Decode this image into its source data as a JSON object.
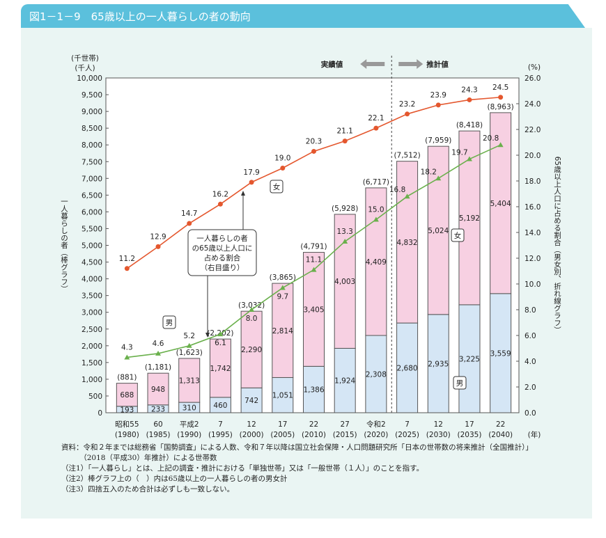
{
  "title": "図1－1－9　65歳以上の一人暮らしの者の動向",
  "chart_data": {
    "type": "bar+line",
    "categories": [
      "昭和55",
      "60",
      "平成2",
      "7",
      "12",
      "17",
      "22",
      "27",
      "令和2",
      "7",
      "12",
      "17",
      "22"
    ],
    "category_years": [
      "(1980)",
      "(1985)",
      "(1990)",
      "(1995)",
      "(2000)",
      "(2005)",
      "(2010)",
      "(2015)",
      "(2020)",
      "(2025)",
      "(2030)",
      "(2035)",
      "(2040)"
    ],
    "x_unit": "(年)",
    "left_axis": {
      "units": [
        "(千世帯)",
        "(千人)"
      ],
      "ylim": [
        0,
        10000
      ],
      "step": 500,
      "label": "一人暮らしの者（棒グラフ）"
    },
    "right_axis": {
      "unit": "(%)",
      "ylim": [
        0,
        26
      ],
      "step": 2,
      "label": "65歳以上人口に占める割合（男女別、折れ線グラフ）"
    },
    "bars": [
      {
        "name": "男",
        "values": [
          193,
          233,
          310,
          460,
          742,
          1051,
          1386,
          1924,
          2308,
          2680,
          2935,
          3225,
          3559
        ],
        "color": "#d5e6f5"
      },
      {
        "name": "女",
        "values": [
          688,
          948,
          1313,
          1742,
          2290,
          2814,
          3405,
          4003,
          4409,
          4832,
          5024,
          5192,
          5404
        ],
        "color": "#f7d0e2"
      }
    ],
    "totals": [
      "(881)",
      "(1,181)",
      "(1,623)",
      "(2,202)",
      "(3,032)",
      "(3,865)",
      "(4,791)",
      "(5,928)",
      "(6,717)",
      "(7,512)",
      "(7,959)",
      "(8,418)",
      "(8,963)"
    ],
    "lines": [
      {
        "name": "女",
        "values": [
          11.2,
          12.9,
          14.7,
          16.2,
          17.9,
          19.0,
          20.3,
          21.1,
          22.1,
          23.2,
          23.9,
          24.3,
          24.5
        ],
        "color": "#e4572e"
      },
      {
        "name": "男",
        "values": [
          4.3,
          4.6,
          5.2,
          6.1,
          8.0,
          9.7,
          11.1,
          13.3,
          15.0,
          16.8,
          18.2,
          19.7,
          20.8
        ],
        "color": "#6ab04c"
      }
    ],
    "actual_label": "実績値",
    "forecast_label": "推計値",
    "callout": [
      "一人暮らしの者",
      "の65歳以上人口に",
      "占める割合",
      "（右目盛り）"
    ],
    "labels": {
      "female": "女",
      "male": "男"
    }
  },
  "notes": [
    "資料：令和２年までは総務省「国勢調査」による人数、令和７年以降は国立社会保障・人口問題研究所「日本の世帯数の将来推計（全国推計）」",
    "　　　（2018（平成30）年推計）による世帯数",
    "（注1）「一人暮らし」とは、上記の調査・推計における「単独世帯」又は「一般世帯（１人）」のことを指す。",
    "（注2）棒グラフ上の（　）内は65歳以上の一人暮らしの者の男女計",
    "（注3）四捨五入のため合計は必ずしも一致しない。"
  ]
}
